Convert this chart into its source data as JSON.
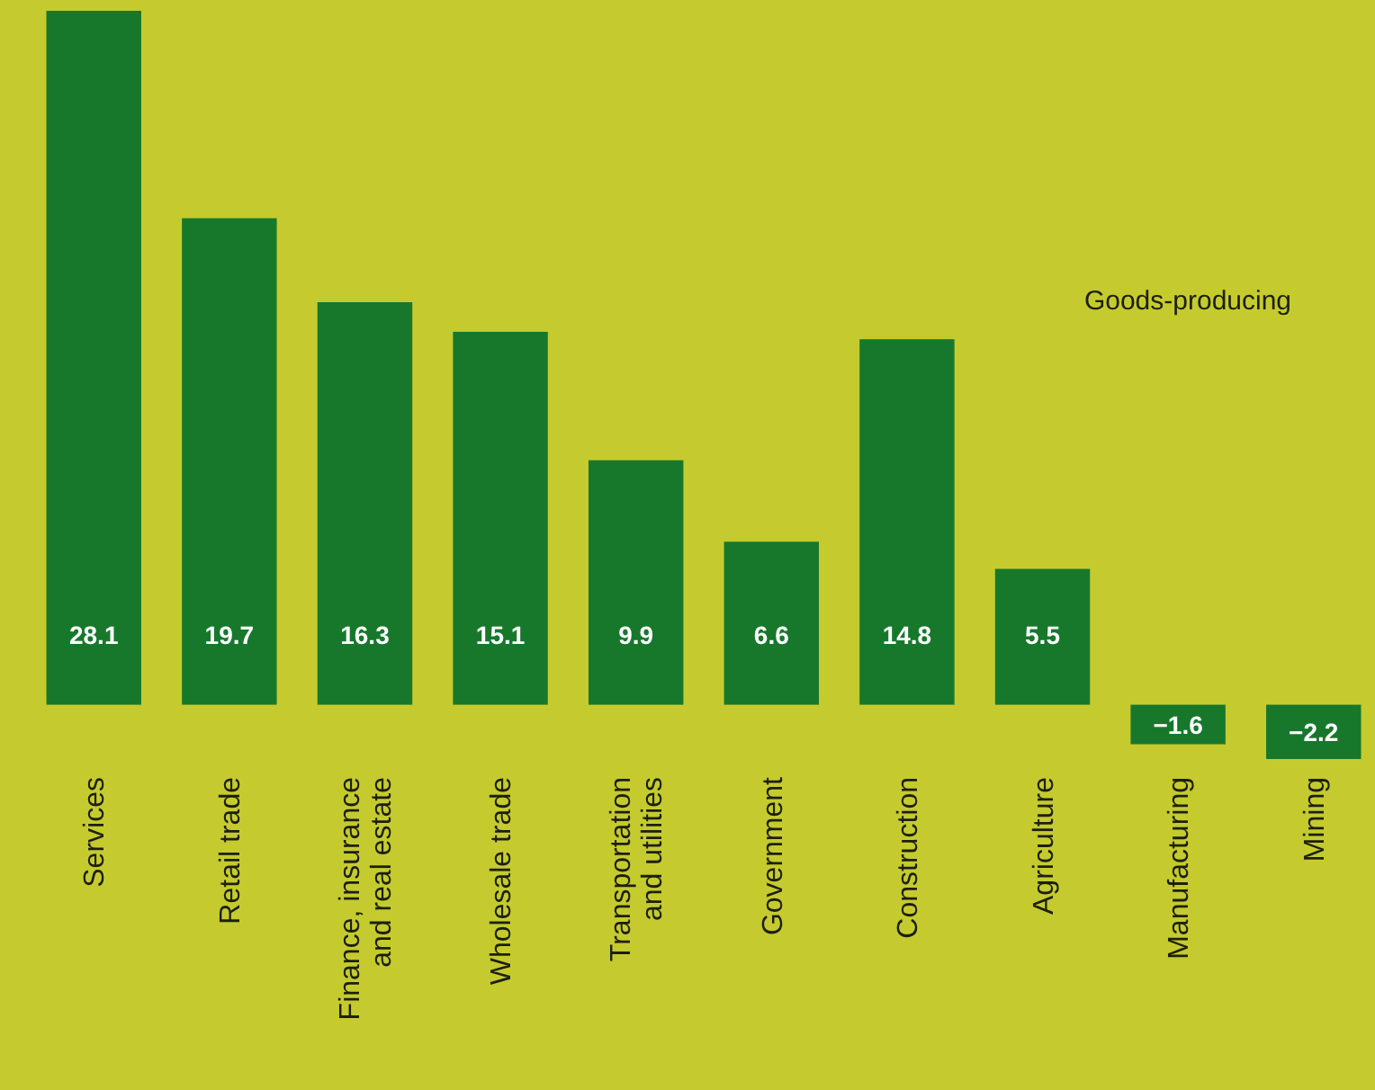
{
  "chart_data": {
    "type": "bar",
    "categories": [
      "Services",
      "Retail trade",
      "Finance, insurance and real estate",
      "Wholesale trade",
      "Transportation and utilities",
      "Government",
      "Construction",
      "Agriculture",
      "Manufacturing",
      "Mining"
    ],
    "values": [
      28.1,
      19.7,
      16.3,
      15.1,
      9.9,
      6.6,
      14.8,
      5.5,
      -1.6,
      -2.2
    ],
    "color": "#17782c",
    "data_labels": true,
    "annotations": [
      "Goods-producing"
    ]
  }
}
